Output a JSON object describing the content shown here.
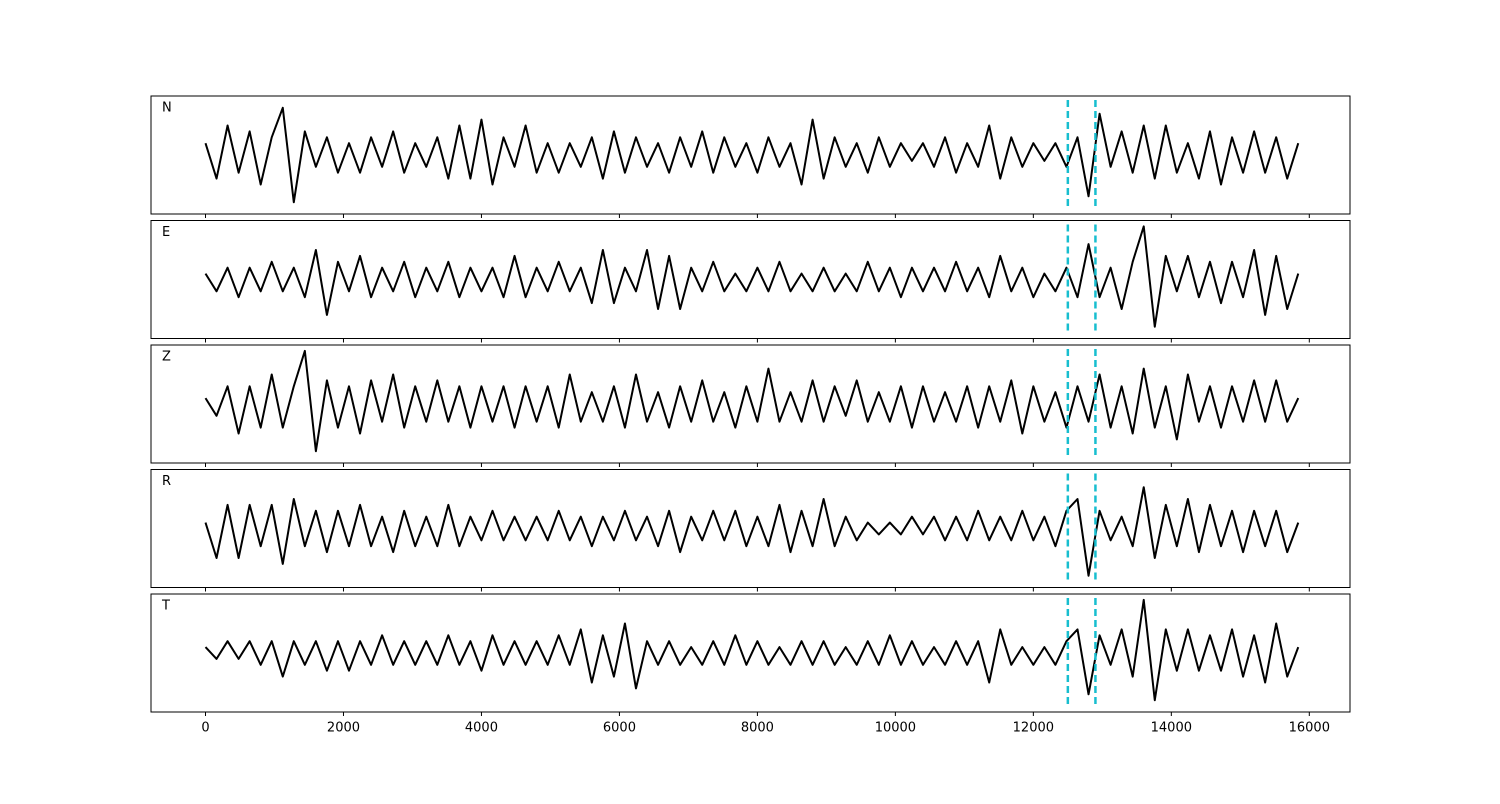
{
  "chart_data": {
    "type": "line",
    "x": [
      0,
      160,
      320,
      480,
      640,
      800,
      960,
      1120,
      1280,
      1440,
      1600,
      1760,
      1920,
      2080,
      2240,
      2400,
      2560,
      2720,
      2880,
      3040,
      3200,
      3360,
      3520,
      3680,
      3840,
      4000,
      4160,
      4320,
      4480,
      4640,
      4800,
      4960,
      5120,
      5280,
      5440,
      5600,
      5760,
      5920,
      6080,
      6240,
      6400,
      6560,
      6720,
      6880,
      7040,
      7200,
      7360,
      7520,
      7680,
      7840,
      8000,
      8160,
      8320,
      8480,
      8640,
      8800,
      8960,
      9120,
      9280,
      9440,
      9600,
      9760,
      9920,
      10080,
      10240,
      10400,
      10560,
      10720,
      10880,
      11040,
      11200,
      11360,
      11520,
      11680,
      11840,
      12000,
      12160,
      12320,
      12480,
      12640,
      12800,
      12960,
      13120,
      13280,
      13440,
      13600,
      13760,
      13920,
      14080,
      14240,
      14400,
      14560,
      14720,
      14880,
      15040,
      15200,
      15360,
      15520,
      15680,
      15840
    ],
    "series": [
      {
        "name": "N",
        "color": "#000000",
        "values": [
          0.2,
          -0.4,
          0.5,
          -0.3,
          0.4,
          -0.5,
          0.3,
          0.8,
          -0.8,
          0.4,
          -0.2,
          0.3,
          -0.3,
          0.2,
          -0.3,
          0.3,
          -0.2,
          0.4,
          -0.3,
          0.2,
          -0.2,
          0.3,
          -0.4,
          0.5,
          -0.4,
          0.6,
          -0.5,
          0.3,
          -0.2,
          0.5,
          -0.3,
          0.2,
          -0.3,
          0.2,
          -0.2,
          0.3,
          -0.4,
          0.4,
          -0.3,
          0.3,
          -0.2,
          0.2,
          -0.3,
          0.3,
          -0.2,
          0.4,
          -0.3,
          0.3,
          -0.2,
          0.2,
          -0.3,
          0.3,
          -0.2,
          0.2,
          -0.5,
          0.6,
          -0.4,
          0.3,
          -0.2,
          0.2,
          -0.3,
          0.3,
          -0.2,
          0.2,
          -0.1,
          0.2,
          -0.2,
          0.3,
          -0.3,
          0.2,
          -0.2,
          0.5,
          -0.4,
          0.3,
          -0.2,
          0.2,
          -0.1,
          0.2,
          -0.2,
          0.3,
          -0.7,
          0.7,
          -0.2,
          0.4,
          -0.3,
          0.5,
          -0.4,
          0.5,
          -0.3,
          0.2,
          -0.4,
          0.4,
          -0.5,
          0.3,
          -0.3,
          0.4,
          -0.3,
          0.3,
          -0.4,
          0.2
        ]
      },
      {
        "name": "E",
        "color": "#000000",
        "values": [
          0.1,
          -0.2,
          0.2,
          -0.3,
          0.2,
          -0.2,
          0.3,
          -0.2,
          0.2,
          -0.3,
          0.5,
          -0.6,
          0.3,
          -0.2,
          0.4,
          -0.3,
          0.2,
          -0.2,
          0.3,
          -0.3,
          0.2,
          -0.2,
          0.3,
          -0.3,
          0.2,
          -0.2,
          0.2,
          -0.3,
          0.4,
          -0.3,
          0.2,
          -0.2,
          0.3,
          -0.2,
          0.2,
          -0.4,
          0.5,
          -0.4,
          0.2,
          -0.2,
          0.5,
          -0.5,
          0.4,
          -0.5,
          0.2,
          -0.2,
          0.3,
          -0.2,
          0.1,
          -0.2,
          0.2,
          -0.2,
          0.3,
          -0.2,
          0.1,
          -0.2,
          0.2,
          -0.2,
          0.1,
          -0.2,
          0.3,
          -0.2,
          0.2,
          -0.3,
          0.2,
          -0.2,
          0.2,
          -0.2,
          0.3,
          -0.2,
          0.2,
          -0.3,
          0.4,
          -0.2,
          0.2,
          -0.3,
          0.1,
          -0.2,
          0.2,
          -0.3,
          0.6,
          -0.3,
          0.2,
          -0.5,
          0.3,
          0.9,
          -0.8,
          0.4,
          -0.2,
          0.4,
          -0.3,
          0.3,
          -0.4,
          0.3,
          -0.3,
          0.5,
          -0.6,
          0.4,
          -0.5,
          0.1
        ]
      },
      {
        "name": "Z",
        "color": "#000000",
        "values": [
          0.1,
          -0.2,
          0.3,
          -0.5,
          0.3,
          -0.4,
          0.5,
          -0.4,
          0.3,
          0.9,
          -0.8,
          0.4,
          -0.4,
          0.3,
          -0.5,
          0.4,
          -0.3,
          0.5,
          -0.4,
          0.3,
          -0.3,
          0.4,
          -0.3,
          0.3,
          -0.4,
          0.3,
          -0.3,
          0.3,
          -0.4,
          0.3,
          -0.3,
          0.3,
          -0.4,
          0.5,
          -0.3,
          0.2,
          -0.3,
          0.3,
          -0.4,
          0.5,
          -0.3,
          0.2,
          -0.4,
          0.3,
          -0.3,
          0.4,
          -0.3,
          0.2,
          -0.4,
          0.3,
          -0.3,
          0.6,
          -0.3,
          0.2,
          -0.3,
          0.4,
          -0.3,
          0.3,
          -0.2,
          0.4,
          -0.3,
          0.2,
          -0.3,
          0.3,
          -0.4,
          0.3,
          -0.3,
          0.2,
          -0.3,
          0.3,
          -0.4,
          0.3,
          -0.3,
          0.4,
          -0.5,
          0.3,
          -0.3,
          0.2,
          -0.4,
          0.3,
          -0.3,
          0.5,
          -0.4,
          0.3,
          -0.5,
          0.6,
          -0.4,
          0.3,
          -0.6,
          0.5,
          -0.3,
          0.3,
          -0.4,
          0.3,
          -0.3,
          0.4,
          -0.3,
          0.4,
          -0.3,
          0.1
        ]
      },
      {
        "name": "R",
        "color": "#000000",
        "values": [
          0.1,
          -0.5,
          0.4,
          -0.5,
          0.4,
          -0.3,
          0.4,
          -0.6,
          0.5,
          -0.3,
          0.3,
          -0.4,
          0.3,
          -0.3,
          0.4,
          -0.3,
          0.2,
          -0.4,
          0.3,
          -0.3,
          0.2,
          -0.3,
          0.4,
          -0.3,
          0.2,
          -0.2,
          0.3,
          -0.2,
          0.2,
          -0.2,
          0.2,
          -0.2,
          0.3,
          -0.2,
          0.2,
          -0.3,
          0.2,
          -0.2,
          0.3,
          -0.2,
          0.2,
          -0.3,
          0.3,
          -0.4,
          0.2,
          -0.2,
          0.3,
          -0.2,
          0.3,
          -0.3,
          0.2,
          -0.3,
          0.4,
          -0.4,
          0.3,
          -0.3,
          0.5,
          -0.3,
          0.2,
          -0.2,
          0.1,
          -0.1,
          0.1,
          -0.1,
          0.2,
          -0.1,
          0.2,
          -0.2,
          0.2,
          -0.2,
          0.3,
          -0.2,
          0.2,
          -0.2,
          0.3,
          -0.2,
          0.2,
          -0.3,
          0.3,
          0.5,
          -0.8,
          0.3,
          -0.2,
          0.2,
          -0.3,
          0.7,
          -0.5,
          0.4,
          -0.3,
          0.5,
          -0.4,
          0.4,
          -0.3,
          0.3,
          -0.4,
          0.3,
          -0.3,
          0.3,
          -0.4,
          0.1
        ]
      },
      {
        "name": "T",
        "color": "#000000",
        "values": [
          0.1,
          -0.1,
          0.2,
          -0.1,
          0.2,
          -0.2,
          0.2,
          -0.4,
          0.2,
          -0.2,
          0.2,
          -0.3,
          0.2,
          -0.3,
          0.2,
          -0.2,
          0.3,
          -0.2,
          0.2,
          -0.2,
          0.2,
          -0.2,
          0.3,
          -0.2,
          0.2,
          -0.3,
          0.3,
          -0.2,
          0.2,
          -0.2,
          0.2,
          -0.2,
          0.3,
          -0.2,
          0.4,
          -0.5,
          0.3,
          -0.4,
          0.5,
          -0.6,
          0.2,
          -0.2,
          0.2,
          -0.2,
          0.1,
          -0.2,
          0.2,
          -0.2,
          0.3,
          -0.2,
          0.2,
          -0.2,
          0.1,
          -0.2,
          0.2,
          -0.2,
          0.2,
          -0.2,
          0.1,
          -0.2,
          0.2,
          -0.2,
          0.3,
          -0.2,
          0.2,
          -0.2,
          0.1,
          -0.2,
          0.2,
          -0.2,
          0.2,
          -0.5,
          0.4,
          -0.2,
          0.1,
          -0.2,
          0.1,
          -0.2,
          0.2,
          0.4,
          -0.7,
          0.3,
          -0.2,
          0.4,
          -0.4,
          0.9,
          -0.8,
          0.4,
          -0.3,
          0.4,
          -0.3,
          0.3,
          -0.3,
          0.4,
          -0.4,
          0.3,
          -0.5,
          0.5,
          -0.4,
          0.1
        ]
      }
    ],
    "xlim": [
      -790,
      16590
    ],
    "xticks": [
      0,
      2000,
      4000,
      6000,
      8000,
      10000,
      12000,
      14000,
      16000
    ],
    "ylim": [
      -1,
      1
    ],
    "vlines": [
      12500,
      12900
    ],
    "vline_color": "#17becf"
  }
}
